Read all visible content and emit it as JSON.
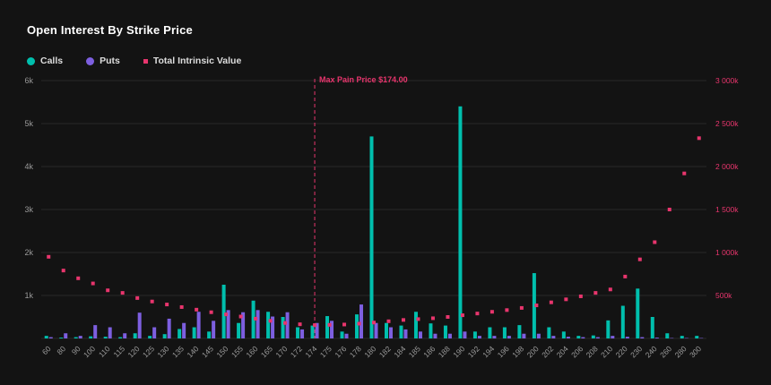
{
  "colors": {
    "background": "#131313",
    "calls": "#00bfad",
    "puts": "#7d5fe0",
    "intrinsic": "#e8356d",
    "axis_text": "#9a9a9a",
    "grid": "#282828",
    "title": "#ffffff",
    "legend_text": "#dddddd"
  },
  "chart_data": {
    "type": "bar",
    "title": "Open Interest By Strike Price",
    "legend_position": "top-left",
    "grid": "horizontal",
    "categories": [
      "60",
      "80",
      "90",
      "100",
      "110",
      "115",
      "120",
      "125",
      "130",
      "135",
      "140",
      "145",
      "150",
      "155",
      "160",
      "165",
      "170",
      "172",
      "174",
      "175",
      "176",
      "178",
      "180",
      "182",
      "184",
      "185",
      "186",
      "188",
      "190",
      "192",
      "194",
      "196",
      "198",
      "200",
      "202",
      "204",
      "206",
      "208",
      "210",
      "220",
      "230",
      "240",
      "260",
      "280",
      "300"
    ],
    "series": [
      {
        "name": "Calls",
        "type": "bar",
        "axis": "left",
        "color_key": "calls",
        "values": [
          60,
          20,
          30,
          50,
          40,
          30,
          120,
          60,
          100,
          220,
          260,
          160,
          1250,
          360,
          880,
          620,
          500,
          260,
          300,
          520,
          160,
          560,
          4700,
          360,
          300,
          620,
          350,
          300,
          5400,
          160,
          260,
          260,
          310,
          1520,
          260,
          160,
          60,
          70,
          420,
          760,
          1160,
          500,
          120,
          60,
          60
        ]
      },
      {
        "name": "Puts",
        "type": "bar",
        "axis": "left",
        "color_key": "puts",
        "values": [
          30,
          120,
          60,
          310,
          260,
          120,
          600,
          260,
          460,
          360,
          620,
          410,
          660,
          610,
          660,
          510,
          610,
          210,
          360,
          410,
          110,
          790,
          360,
          260,
          210,
          160,
          110,
          110,
          160,
          60,
          60,
          60,
          110,
          110,
          60,
          40,
          30,
          30,
          60,
          40,
          30,
          20,
          10,
          10,
          10
        ]
      },
      {
        "name": "Total Intrinsic Value",
        "type": "scatter",
        "axis": "right",
        "color_key": "intrinsic",
        "values_k": [
          950,
          790,
          700,
          640,
          560,
          530,
          470,
          430,
          395,
          365,
          335,
          305,
          280,
          255,
          230,
          205,
          180,
          165,
          155,
          158,
          162,
          172,
          185,
          200,
          215,
          225,
          235,
          250,
          270,
          290,
          310,
          330,
          355,
          385,
          420,
          455,
          490,
          530,
          570,
          720,
          920,
          1120,
          1500,
          1920,
          2330
        ]
      }
    ],
    "left_axis": {
      "max": 6000,
      "ticks": [
        {
          "value": 1000,
          "label": "1k"
        },
        {
          "value": 2000,
          "label": "2k"
        },
        {
          "value": 3000,
          "label": "3k"
        },
        {
          "value": 4000,
          "label": "4k"
        },
        {
          "value": 5000,
          "label": "5k"
        },
        {
          "value": 6000,
          "label": "6k"
        }
      ]
    },
    "right_axis": {
      "max": 3000,
      "ticks": [
        {
          "value": 500,
          "label": "500k"
        },
        {
          "value": 1000,
          "label": "1 000k"
        },
        {
          "value": 1500,
          "label": "1 500k"
        },
        {
          "value": 2000,
          "label": "2 000k"
        },
        {
          "value": 2500,
          "label": "2 500k"
        },
        {
          "value": 3000,
          "label": "3 000k"
        }
      ]
    },
    "max_pain": {
      "strike": "174",
      "label": "Max Pain Price $174.00"
    }
  }
}
